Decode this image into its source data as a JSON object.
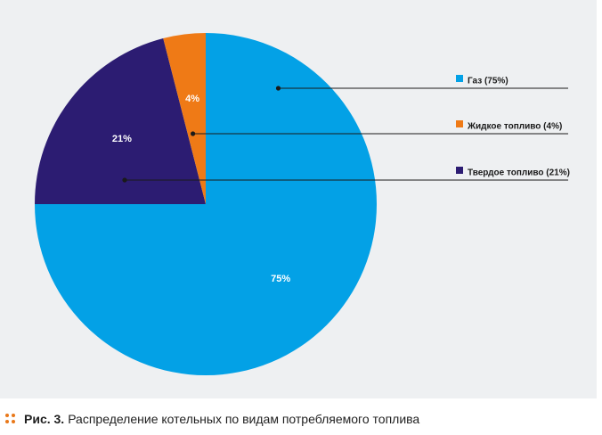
{
  "chart_data": {
    "type": "pie",
    "start_angle_deg": 0,
    "direction": "clockwise",
    "slices": [
      {
        "label": "Газ (75%)",
        "value": 75,
        "data_label": "75%",
        "color": "#03a1e6"
      },
      {
        "label": "Твердое топливо (21%)",
        "value": 21,
        "data_label": "21%",
        "color": "#2c1c72"
      },
      {
        "label": "Жидкое топливо (4%)",
        "value": 4,
        "data_label": "4%",
        "color": "#ef7a16"
      }
    ],
    "legend_placement": "right",
    "legend_order": [
      0,
      2,
      1
    ]
  },
  "caption": {
    "prefix": "Рис. 3.",
    "text": "Распределение котельных по видам потребляемого топлива",
    "marker_color": "#e97819"
  }
}
